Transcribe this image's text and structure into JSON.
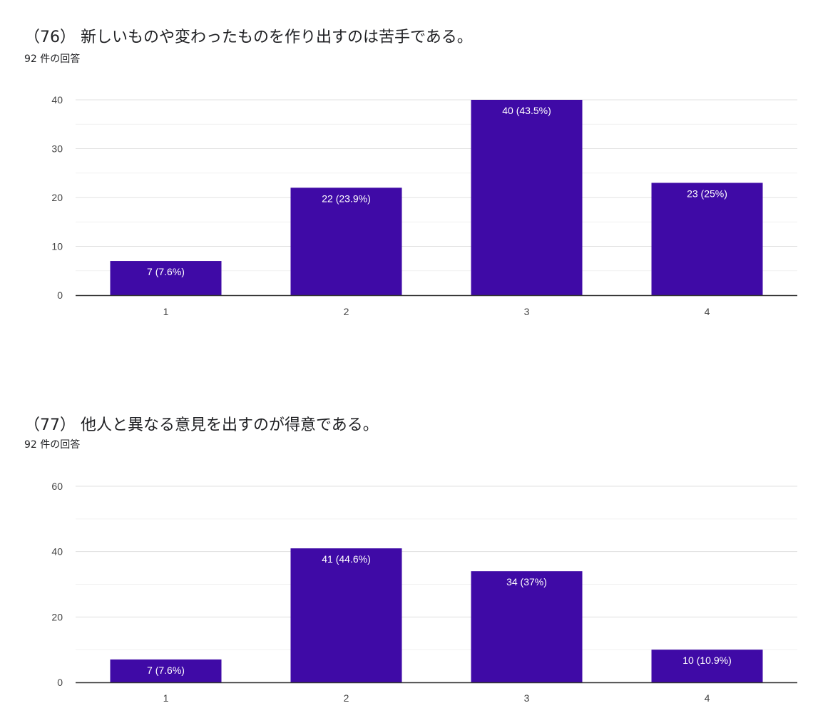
{
  "chart_data": [
    {
      "type": "bar",
      "title": "（76） 新しいものや変わったものを作り出すのは苦手である。",
      "subtitle": "92 件の回答",
      "categories": [
        "1",
        "2",
        "3",
        "4"
      ],
      "values": [
        7,
        22,
        40,
        23
      ],
      "data_labels": [
        "7 (7.6%)",
        "22 (23.9%)",
        "40 (43.5%)",
        "23 (25%)"
      ],
      "ylim": [
        0,
        40
      ],
      "yticks": [
        0,
        10,
        20,
        30,
        40
      ],
      "grid": true,
      "bar_color": "#3f0aa6"
    },
    {
      "type": "bar",
      "title": "（77） 他人と異なる意見を出すのが得意である。",
      "subtitle": "92 件の回答",
      "categories": [
        "1",
        "2",
        "3",
        "4"
      ],
      "values": [
        7,
        41,
        34,
        10
      ],
      "data_labels": [
        "7 (7.6%)",
        "41 (44.6%)",
        "34 (37%)",
        "10 (10.9%)"
      ],
      "ylim": [
        0,
        60
      ],
      "yticks": [
        0,
        20,
        40,
        60
      ],
      "grid": true,
      "bar_color": "#3f0aa6"
    }
  ]
}
